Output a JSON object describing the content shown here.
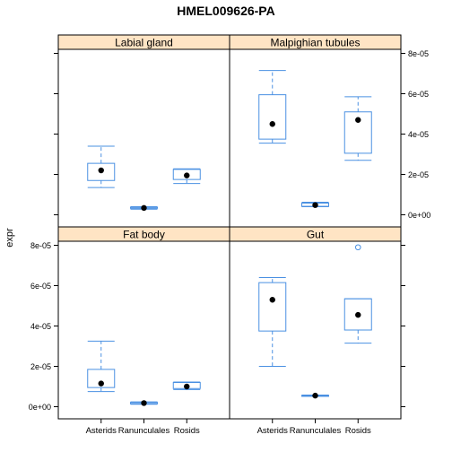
{
  "chart_data": {
    "type": "box",
    "title": "HMEL009626-PA",
    "ylabel": "expr",
    "xlabel": "",
    "categories": [
      "Asterids",
      "Ranunculales",
      "Rosids"
    ],
    "ylim": [
      -6e-06,
      8.2e-05
    ],
    "yticks": [
      0,
      2e-05,
      4e-05,
      6e-05,
      8e-05
    ],
    "ytick_labels": [
      "0e+00",
      "2e-05",
      "4e-05",
      "6e-05",
      "8e-05"
    ],
    "grid": false,
    "colors": {
      "box": "#4a90e2",
      "median": "#000000",
      "strip": "#ffe4c4",
      "outlier": "#4a90e2"
    },
    "panels": [
      {
        "name": "Labial gland",
        "boxes": [
          {
            "category": "Asterids",
            "lower_whisker": 1.35e-05,
            "q1": 1.7e-05,
            "median": 2.2e-05,
            "q3": 2.55e-05,
            "upper_whisker": 3.4e-05,
            "outliers": []
          },
          {
            "category": "Ranunculales",
            "lower_whisker": 2.8e-06,
            "q1": 3.2e-06,
            "median": 3.4e-06,
            "q3": 3.7e-06,
            "upper_whisker": 4e-06,
            "outliers": []
          },
          {
            "category": "Rosids",
            "lower_whisker": 1.55e-05,
            "q1": 1.75e-05,
            "median": 1.95e-05,
            "q3": 2.25e-05,
            "upper_whisker": 2.28e-05,
            "outliers": []
          }
        ]
      },
      {
        "name": "Malpighian tubules",
        "boxes": [
          {
            "category": "Asterids",
            "lower_whisker": 3.55e-05,
            "q1": 3.75e-05,
            "median": 4.5e-05,
            "q3": 5.95e-05,
            "upper_whisker": 7.15e-05,
            "outliers": []
          },
          {
            "category": "Ranunculales",
            "lower_whisker": 4e-06,
            "q1": 4.2e-06,
            "median": 4.8e-06,
            "q3": 5.8e-06,
            "upper_whisker": 6.2e-06,
            "outliers": []
          },
          {
            "category": "Rosids",
            "lower_whisker": 2.7e-05,
            "q1": 3.05e-05,
            "median": 4.7e-05,
            "q3": 5.1e-05,
            "upper_whisker": 5.85e-05,
            "outliers": []
          }
        ]
      },
      {
        "name": "Fat body",
        "boxes": [
          {
            "category": "Asterids",
            "lower_whisker": 7.5e-06,
            "q1": 9.5e-06,
            "median": 1.15e-05,
            "q3": 1.85e-05,
            "upper_whisker": 3.25e-05,
            "outliers": []
          },
          {
            "category": "Ranunculales",
            "lower_whisker": 1.2e-06,
            "q1": 1.5e-06,
            "median": 1.8e-06,
            "q3": 2.1e-06,
            "upper_whisker": 2.4e-06,
            "outliers": []
          },
          {
            "category": "Rosids",
            "lower_whisker": 8.5e-06,
            "q1": 9e-06,
            "median": 1e-05,
            "q3": 1.2e-05,
            "upper_whisker": 1.22e-05,
            "outliers": []
          }
        ]
      },
      {
        "name": "Gut",
        "boxes": [
          {
            "category": "Asterids",
            "lower_whisker": 2e-05,
            "q1": 3.75e-05,
            "median": 5.3e-05,
            "q3": 6.15e-05,
            "upper_whisker": 6.4e-05,
            "outliers": []
          },
          {
            "category": "Ranunculales",
            "lower_whisker": 5.2e-06,
            "q1": 5.4e-06,
            "median": 5.5e-06,
            "q3": 5.6e-06,
            "upper_whisker": 5.8e-06,
            "outliers": []
          },
          {
            "category": "Rosids",
            "lower_whisker": 3.15e-05,
            "q1": 3.8e-05,
            "median": 4.55e-05,
            "q3": 5.35e-05,
            "upper_whisker": 5.35e-05,
            "outliers": [
              7.9e-05
            ]
          }
        ]
      }
    ]
  }
}
